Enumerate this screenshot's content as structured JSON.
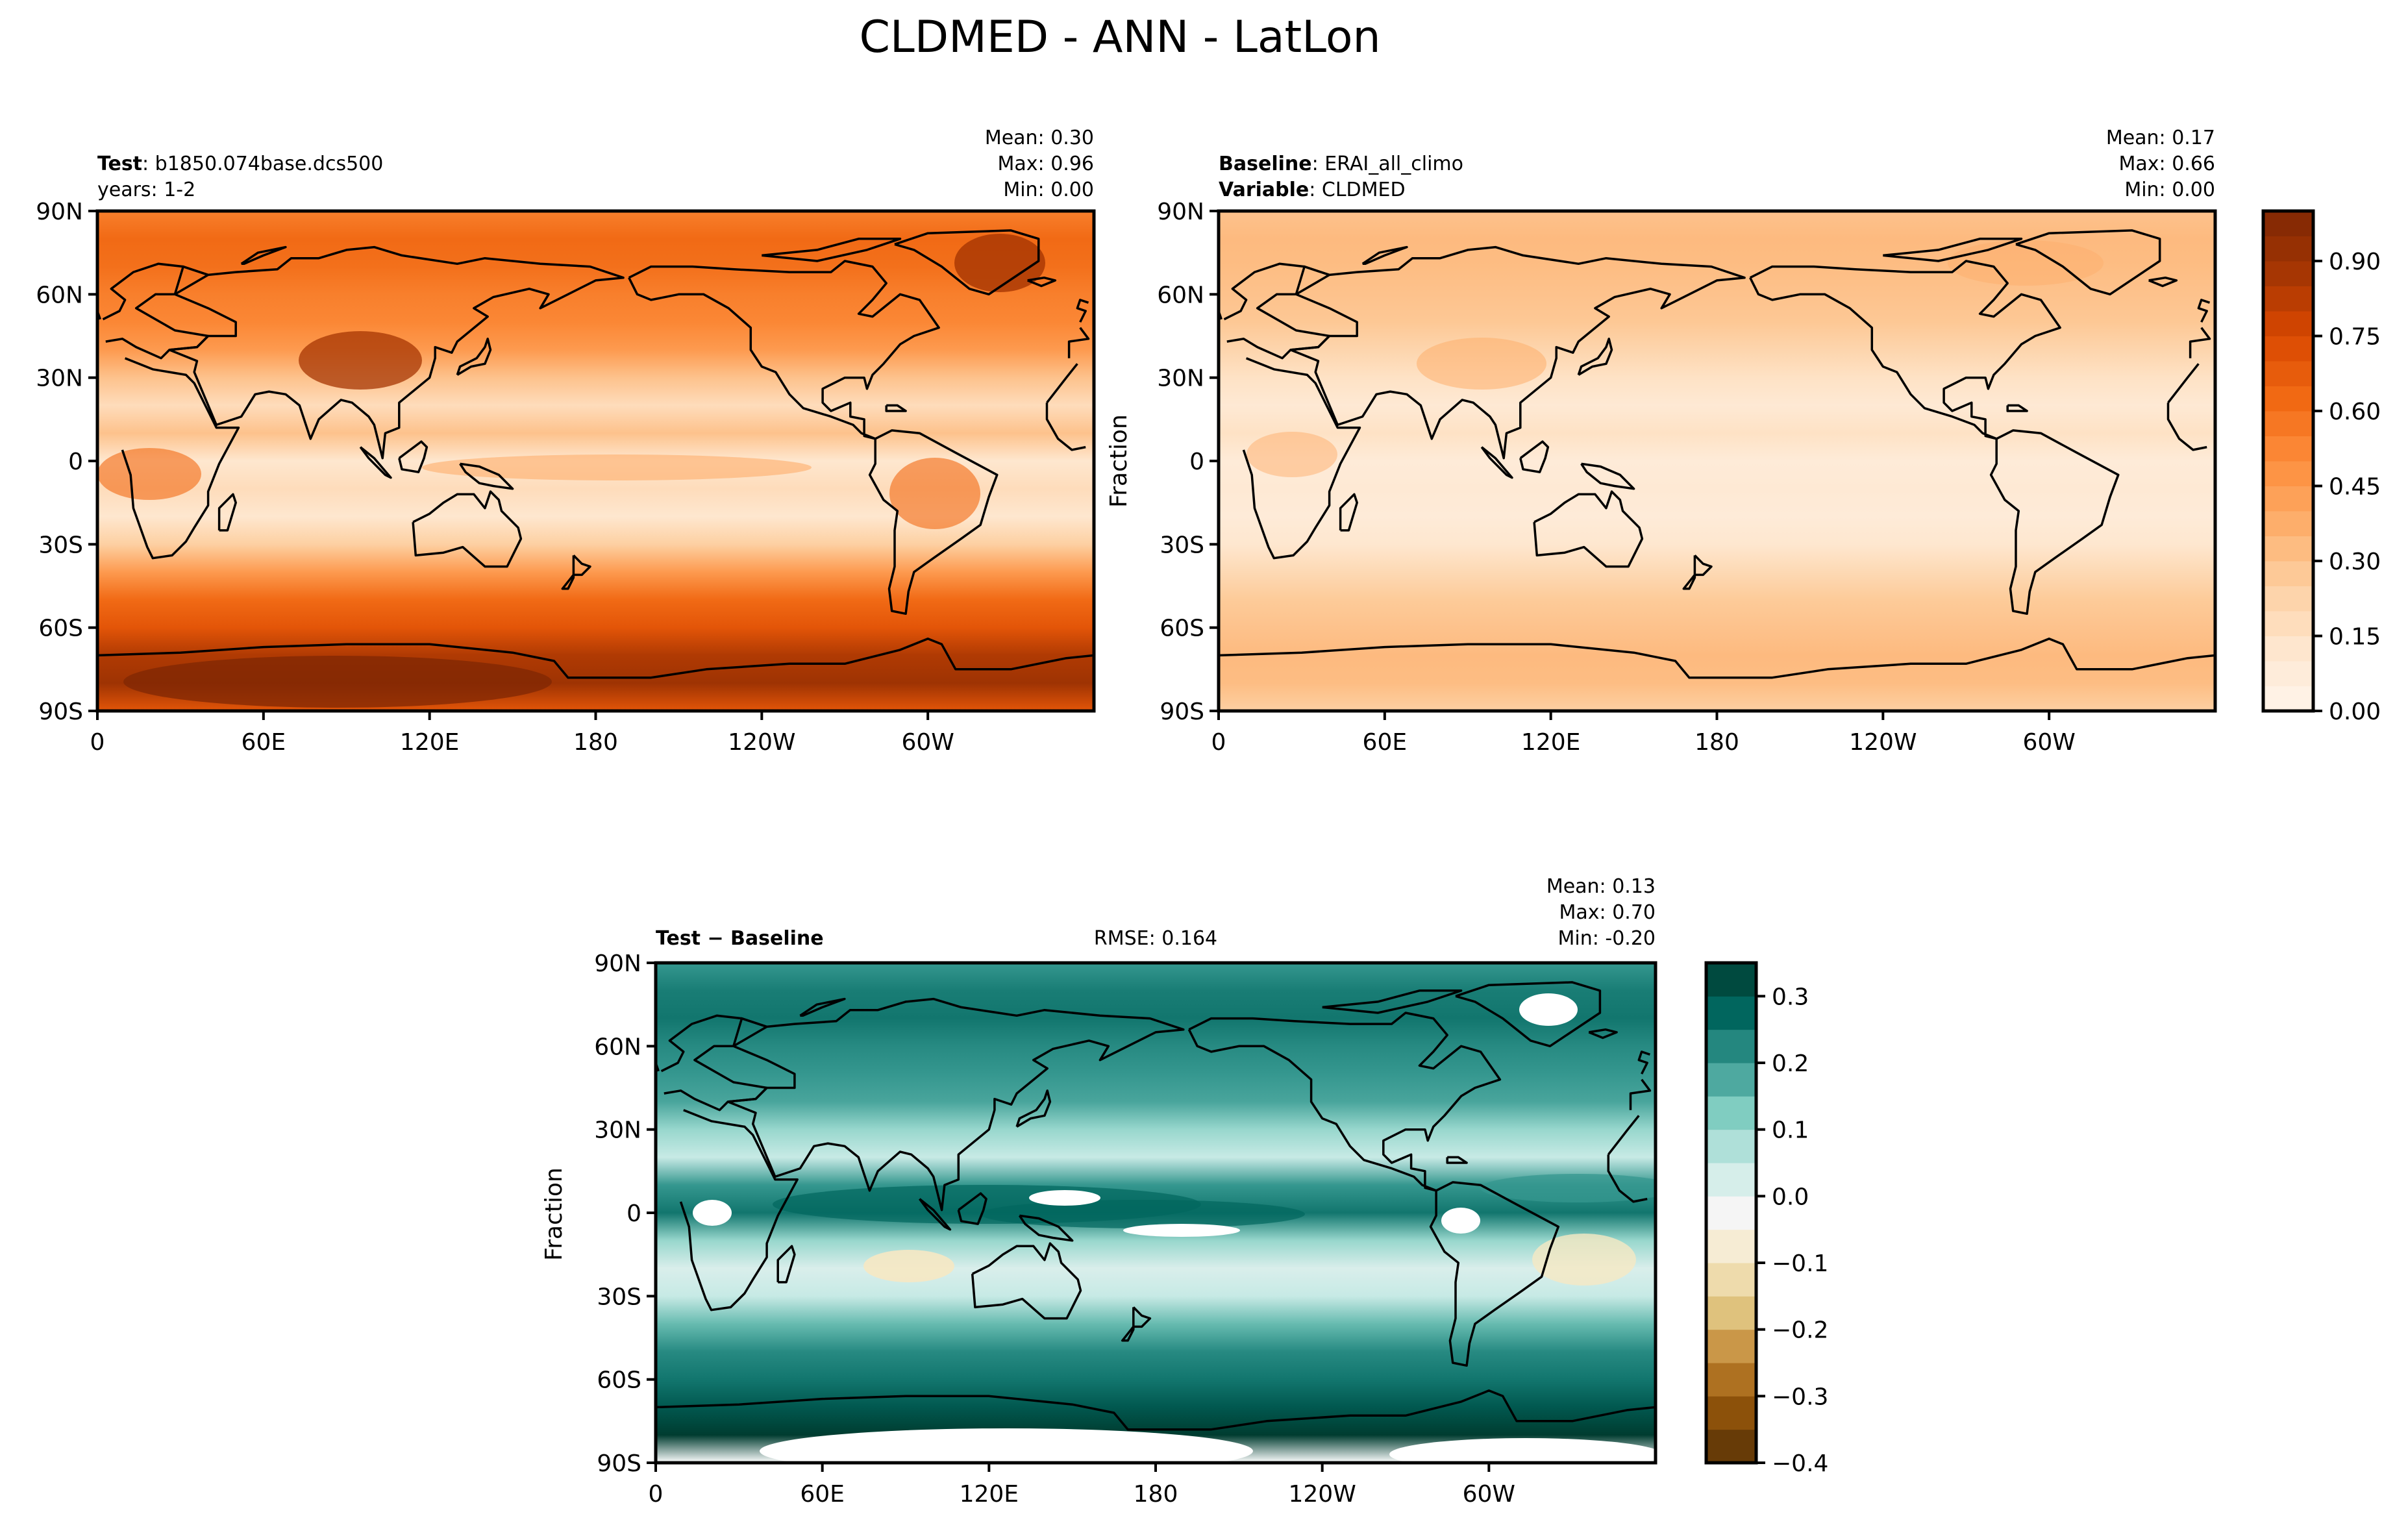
{
  "figure_title": "CLDMED - ANN - LatLon",
  "colors": {
    "seq_ramp": [
      "#fff5eb",
      "#fee6ce",
      "#fdd0a2",
      "#fdae6b",
      "#fd8d3c",
      "#f16913",
      "#d94801",
      "#a63603",
      "#7f2704"
    ],
    "div_ramp": [
      "#543005",
      "#8c510a",
      "#bf812d",
      "#dfc27d",
      "#f6e8c3",
      "#f5f5f5",
      "#c7eae5",
      "#80cdc1",
      "#35978f",
      "#01665e",
      "#003c30"
    ],
    "blank": "#ffffff"
  },
  "panels": {
    "test": {
      "left_title_bold": "Test",
      "left_title_rest": ": b1850.074base.dcs500",
      "left_subtitle": "years: 1-2",
      "stats": {
        "mean": "Mean:  0.30",
        "max": "Max:  0.96",
        "min": "Min:  0.00"
      }
    },
    "baseline": {
      "left_title_bold": "Baseline",
      "left_title_rest": ": ERAI_all_climo",
      "left_subtitle_bold": "Variable",
      "left_subtitle_rest": ": CLDMED",
      "ylabel": "Fraction",
      "stats": {
        "mean": "Mean:  0.17",
        "max": "Max:  0.66",
        "min": "Min:  0.00"
      }
    },
    "diff": {
      "left_title_bold": "Test − Baseline",
      "center_title": "RMSE: 0.164",
      "ylabel": "Fraction",
      "stats": {
        "mean": "Mean:  0.13",
        "max": "Max:  0.70",
        "min": "Min: -0.20"
      }
    }
  },
  "chart_data": [
    {
      "type": "heatmap",
      "panel": "test",
      "xlabel": "",
      "ylabel": "",
      "x_ticks": [
        "0",
        "60E",
        "120E",
        "180",
        "120W",
        "60W"
      ],
      "y_ticks": [
        "90N",
        "60N",
        "30N",
        "0",
        "30S",
        "60S",
        "90S"
      ],
      "xlim": [
        0,
        360
      ],
      "ylim": [
        -90,
        90
      ],
      "stats": {
        "mean": 0.3,
        "max": 0.96,
        "min": 0.0
      },
      "colormap": "Oranges",
      "lat_profile": [
        [
          -90,
          0.7
        ],
        [
          -80,
          0.9
        ],
        [
          -70,
          0.85
        ],
        [
          -60,
          0.7
        ],
        [
          -50,
          0.62
        ],
        [
          -40,
          0.45
        ],
        [
          -30,
          0.25
        ],
        [
          -20,
          0.12
        ],
        [
          -10,
          0.18
        ],
        [
          0,
          0.12
        ],
        [
          10,
          0.3
        ],
        [
          20,
          0.18
        ],
        [
          30,
          0.3
        ],
        [
          40,
          0.45
        ],
        [
          50,
          0.52
        ],
        [
          60,
          0.55
        ],
        [
          70,
          0.6
        ],
        [
          80,
          0.62
        ],
        [
          90,
          0.55
        ]
      ]
    },
    {
      "type": "heatmap",
      "panel": "baseline",
      "xlabel": "",
      "ylabel": "Fraction",
      "x_ticks": [
        "0",
        "60E",
        "120E",
        "180",
        "120W",
        "60W"
      ],
      "y_ticks": [
        "90N",
        "60N",
        "30N",
        "0",
        "30S",
        "60S",
        "90S"
      ],
      "xlim": [
        0,
        360
      ],
      "ylim": [
        -90,
        90
      ],
      "stats": {
        "mean": 0.17,
        "max": 0.66,
        "min": 0.0
      },
      "colormap": "Oranges",
      "lat_profile": [
        [
          -90,
          0.25
        ],
        [
          -80,
          0.32
        ],
        [
          -70,
          0.33
        ],
        [
          -60,
          0.3
        ],
        [
          -50,
          0.27
        ],
        [
          -40,
          0.2
        ],
        [
          -30,
          0.12
        ],
        [
          -20,
          0.08
        ],
        [
          -10,
          0.1
        ],
        [
          0,
          0.08
        ],
        [
          10,
          0.15
        ],
        [
          20,
          0.1
        ],
        [
          30,
          0.15
        ],
        [
          40,
          0.22
        ],
        [
          50,
          0.28
        ],
        [
          60,
          0.3
        ],
        [
          70,
          0.32
        ],
        [
          80,
          0.33
        ],
        [
          90,
          0.3
        ]
      ]
    },
    {
      "type": "heatmap",
      "panel": "diff",
      "xlabel": "",
      "ylabel": "Fraction",
      "x_ticks": [
        "0",
        "60E",
        "120E",
        "180",
        "120W",
        "60W"
      ],
      "y_ticks": [
        "90N",
        "60N",
        "30N",
        "0",
        "30S",
        "60S",
        "90S"
      ],
      "xlim": [
        0,
        360
      ],
      "ylim": [
        -90,
        90
      ],
      "stats": {
        "mean": 0.13,
        "max": 0.7,
        "min": -0.2,
        "rmse": 0.164
      },
      "colormap": "BrBG",
      "lat_profile": [
        [
          -90,
          0.0
        ],
        [
          -80,
          0.4
        ],
        [
          -70,
          0.3
        ],
        [
          -60,
          0.25
        ],
        [
          -50,
          0.22
        ],
        [
          -40,
          0.15
        ],
        [
          -30,
          0.05
        ],
        [
          -20,
          0.02
        ],
        [
          -10,
          0.1
        ],
        [
          0,
          0.25
        ],
        [
          10,
          0.2
        ],
        [
          20,
          0.05
        ],
        [
          30,
          0.1
        ],
        [
          40,
          0.18
        ],
        [
          50,
          0.2
        ],
        [
          60,
          0.22
        ],
        [
          70,
          0.25
        ],
        [
          80,
          0.24
        ],
        [
          90,
          0.2
        ]
      ]
    }
  ],
  "colorbars": [
    {
      "for": "test_and_baseline",
      "ticks": [
        "0.00",
        "0.15",
        "0.30",
        "0.45",
        "0.60",
        "0.75",
        "0.90"
      ],
      "range": [
        0,
        1
      ]
    },
    {
      "for": "diff",
      "ticks": [
        "−0.4",
        "−0.3",
        "−0.2",
        "−0.1",
        "0.0",
        "0.1",
        "0.2",
        "0.3"
      ],
      "range": [
        -0.4,
        0.35
      ]
    }
  ]
}
